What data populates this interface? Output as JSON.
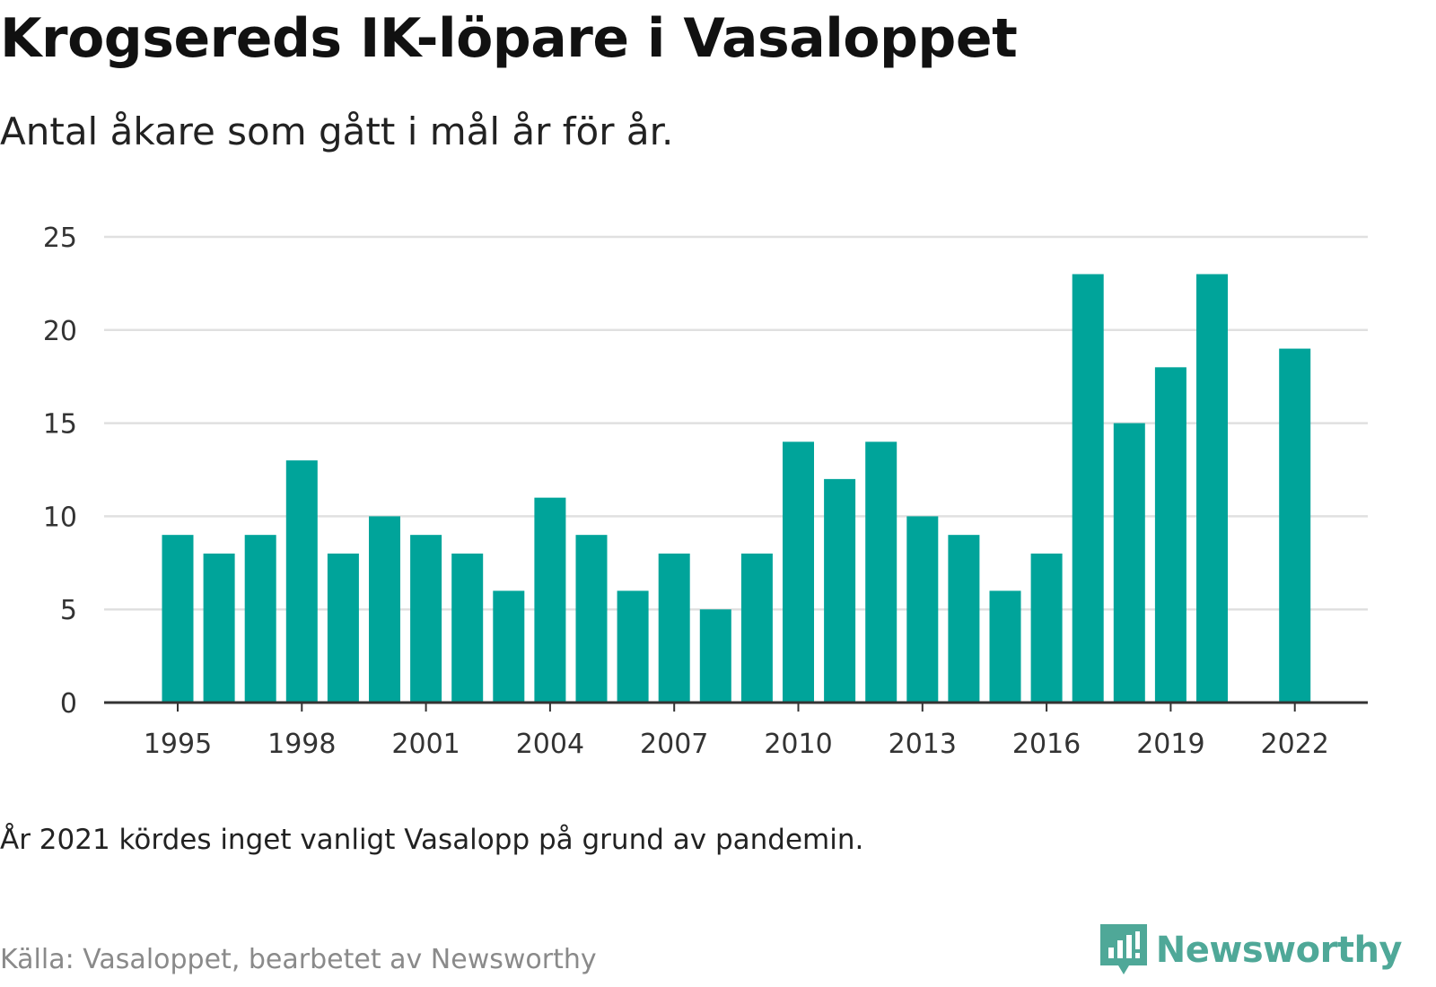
{
  "title": "Krogsereds IK-löpare i Vasaloppet",
  "subtitle": "Antal åkare som gått i mål år för år.",
  "note": "År 2021 kördes inget vanligt Vasalopp på grund av pandemin.",
  "source": "Källa: Vasaloppet, bearbetet av Newsworthy",
  "brand": {
    "name": "Newsworthy",
    "icon": "newsworthy-logo-icon",
    "color": "#4fa898"
  },
  "colors": {
    "bar": "#00a49a",
    "grid": "#e0e0e0",
    "axis": "#333333"
  },
  "chart_data": {
    "type": "bar",
    "categories": [
      1995,
      1996,
      1997,
      1998,
      1999,
      2000,
      2001,
      2002,
      2003,
      2004,
      2005,
      2006,
      2007,
      2008,
      2009,
      2010,
      2011,
      2012,
      2013,
      2014,
      2015,
      2016,
      2017,
      2018,
      2019,
      2020,
      2021,
      2022
    ],
    "values": [
      9,
      8,
      9,
      13,
      8,
      10,
      9,
      8,
      6,
      11,
      9,
      6,
      8,
      5,
      8,
      14,
      12,
      14,
      10,
      9,
      6,
      8,
      23,
      15,
      18,
      23,
      null,
      19
    ],
    "ylim": [
      0,
      25
    ],
    "yticks": [
      0,
      5,
      10,
      15,
      20,
      25
    ],
    "xticks": [
      1995,
      1998,
      2001,
      2004,
      2007,
      2010,
      2013,
      2016,
      2019,
      2022
    ],
    "grid": true
  }
}
